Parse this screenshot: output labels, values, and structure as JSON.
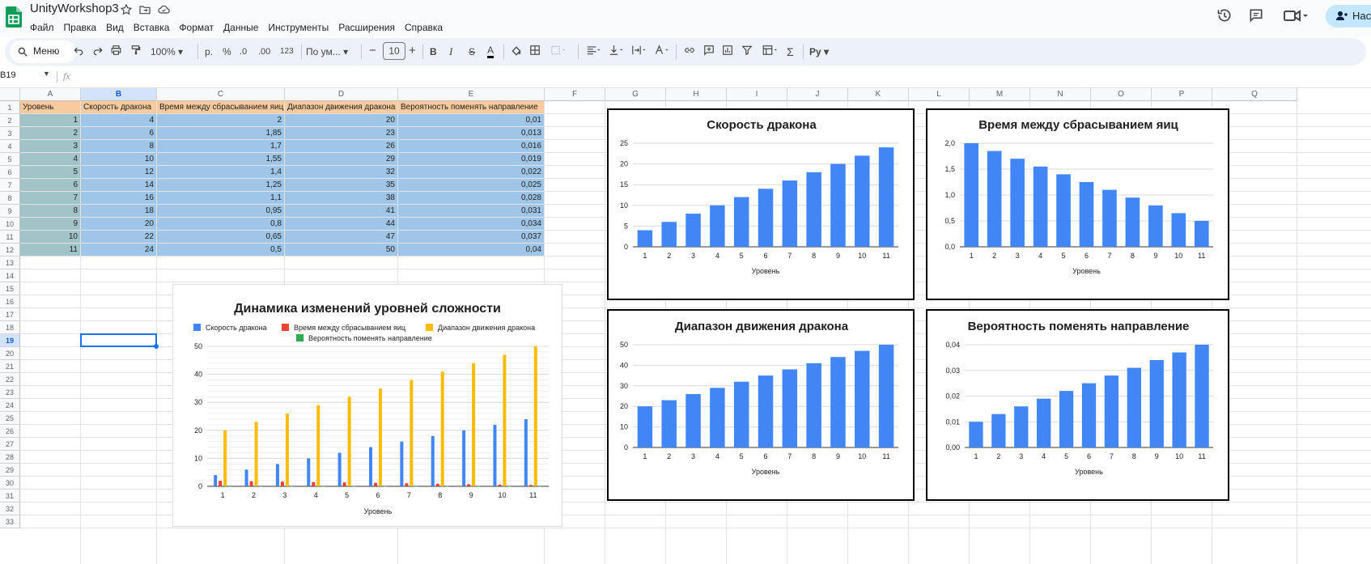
{
  "app": {
    "doc_title": "UnityWorkshop3",
    "menu": [
      "Файл",
      "Правка",
      "Вид",
      "Вставка",
      "Формат",
      "Данные",
      "Инструменты",
      "Расширения",
      "Справка"
    ],
    "share_label": "Нас"
  },
  "toolbar": {
    "search_label": "Меню",
    "zoom": "100%",
    "currency": "р.",
    "percent": "%",
    "dec_less": ".0",
    "dec_more": ".00",
    "number_format": "123",
    "font_name": "По ум...",
    "font_size": "10",
    "bold": "B",
    "italic": "I",
    "strike": "S",
    "text_color": "A",
    "sigma": "Σ",
    "script_btn": "Py"
  },
  "formula_bar": {
    "cell_ref": "B19",
    "fx": "fx",
    "content": ""
  },
  "sheet": {
    "columns": [
      "A",
      "B",
      "C",
      "D",
      "E",
      "F",
      "G",
      "H",
      "I",
      "J",
      "K",
      "L",
      "M",
      "N",
      "O",
      "P",
      "Q"
    ],
    "selected_column": "B",
    "selected_row": "19",
    "rows": [
      "1",
      "2",
      "3",
      "4",
      "5",
      "6",
      "7",
      "8",
      "9",
      "10",
      "11",
      "12",
      "13",
      "14",
      "15",
      "16",
      "17",
      "18",
      "19",
      "20",
      "21",
      "22",
      "23",
      "24",
      "25",
      "26",
      "27",
      "28",
      "29",
      "30",
      "31",
      "32",
      "33"
    ],
    "header": [
      "Уровень",
      "Скорость дракона",
      "Время между сбрасыванием яиц",
      "Диапазон движения дракона",
      "Вероятность поменять направление"
    ],
    "data": [
      [
        "1",
        "4",
        "2",
        "20",
        "0,01"
      ],
      [
        "2",
        "6",
        "1,85",
        "23",
        "0,013"
      ],
      [
        "3",
        "8",
        "1,7",
        "26",
        "0,016"
      ],
      [
        "4",
        "10",
        "1,55",
        "29",
        "0,019"
      ],
      [
        "5",
        "12",
        "1,4",
        "32",
        "0,022"
      ],
      [
        "6",
        "14",
        "1,25",
        "35",
        "0,025"
      ],
      [
        "7",
        "16",
        "1,1",
        "38",
        "0,028"
      ],
      [
        "8",
        "18",
        "0,95",
        "41",
        "0,031"
      ],
      [
        "9",
        "20",
        "0,8",
        "44",
        "0,034"
      ],
      [
        "10",
        "22",
        "0,65",
        "47",
        "0,037"
      ],
      [
        "11",
        "24",
        "0,5",
        "50",
        "0,04"
      ]
    ]
  },
  "colors": {
    "blue": "#4285f4",
    "red": "#ea4335",
    "yellow": "#fbbc04",
    "green": "#34a853",
    "header_orange": "#f9cb9c",
    "col_a": "#a2c4c9",
    "col_b_to_e": "#9fc5e8",
    "selection": "#1a73e8"
  },
  "chart_data": [
    {
      "type": "bar",
      "title": "Динамика изменений уровней сложности",
      "xlabel": "Уровень",
      "ylabel": "",
      "categories": [
        "1",
        "2",
        "3",
        "4",
        "5",
        "6",
        "7",
        "8",
        "9",
        "10",
        "11"
      ],
      "series": [
        {
          "name": "Скорость дракона",
          "values": [
            4,
            6,
            8,
            10,
            12,
            14,
            16,
            18,
            20,
            22,
            24
          ]
        },
        {
          "name": "Время между сбрасыванием яиц",
          "values": [
            2,
            1.85,
            1.7,
            1.55,
            1.4,
            1.25,
            1.1,
            0.95,
            0.8,
            0.65,
            0.5
          ]
        },
        {
          "name": "Диапазон движения дракона",
          "values": [
            20,
            23,
            26,
            29,
            32,
            35,
            38,
            41,
            44,
            47,
            50
          ]
        },
        {
          "name": "Вероятность поменять направление",
          "values": [
            0.01,
            0.013,
            0.016,
            0.019,
            0.022,
            0.025,
            0.028,
            0.031,
            0.034,
            0.037,
            0.04
          ]
        }
      ],
      "ylim": [
        0,
        50
      ],
      "yticks": [
        "0",
        "10",
        "20",
        "30",
        "40",
        "50"
      ],
      "legend": "top",
      "grid": true
    },
    {
      "type": "bar",
      "title": "Скорость дракона",
      "xlabel": "Уровень",
      "categories": [
        "1",
        "2",
        "3",
        "4",
        "5",
        "6",
        "7",
        "8",
        "9",
        "10",
        "11"
      ],
      "values": [
        4,
        6,
        8,
        10,
        12,
        14,
        16,
        18,
        20,
        22,
        24
      ],
      "ylim": [
        0,
        25
      ],
      "yticks": [
        "0",
        "5",
        "10",
        "15",
        "20",
        "25"
      ],
      "grid": true
    },
    {
      "type": "bar",
      "title": "Время между сбрасыванием яиц",
      "xlabel": "Уровень",
      "categories": [
        "1",
        "2",
        "3",
        "4",
        "5",
        "6",
        "7",
        "8",
        "9",
        "10",
        "11"
      ],
      "values": [
        2,
        1.85,
        1.7,
        1.55,
        1.4,
        1.25,
        1.1,
        0.95,
        0.8,
        0.65,
        0.5
      ],
      "ylim": [
        0,
        2
      ],
      "yticks": [
        "0,0",
        "0,5",
        "1,0",
        "1,5",
        "2,0"
      ],
      "grid": true
    },
    {
      "type": "bar",
      "title": "Диапазон движения дракона",
      "xlabel": "Уровень",
      "categories": [
        "1",
        "2",
        "3",
        "4",
        "5",
        "6",
        "7",
        "8",
        "9",
        "10",
        "11"
      ],
      "values": [
        20,
        23,
        26,
        29,
        32,
        35,
        38,
        41,
        44,
        47,
        50
      ],
      "ylim": [
        0,
        50
      ],
      "yticks": [
        "0",
        "10",
        "20",
        "30",
        "40",
        "50"
      ],
      "grid": true
    },
    {
      "type": "bar",
      "title": "Вероятность поменять направление",
      "xlabel": "Уровень",
      "categories": [
        "1",
        "2",
        "3",
        "4",
        "5",
        "6",
        "7",
        "8",
        "9",
        "10",
        "11"
      ],
      "values": [
        0.01,
        0.013,
        0.016,
        0.019,
        0.022,
        0.025,
        0.028,
        0.031,
        0.034,
        0.037,
        0.04
      ],
      "ylim": [
        0,
        0.04
      ],
      "yticks": [
        "0,00",
        "0,01",
        "0,02",
        "0,03",
        "0,04"
      ],
      "grid": true
    }
  ]
}
